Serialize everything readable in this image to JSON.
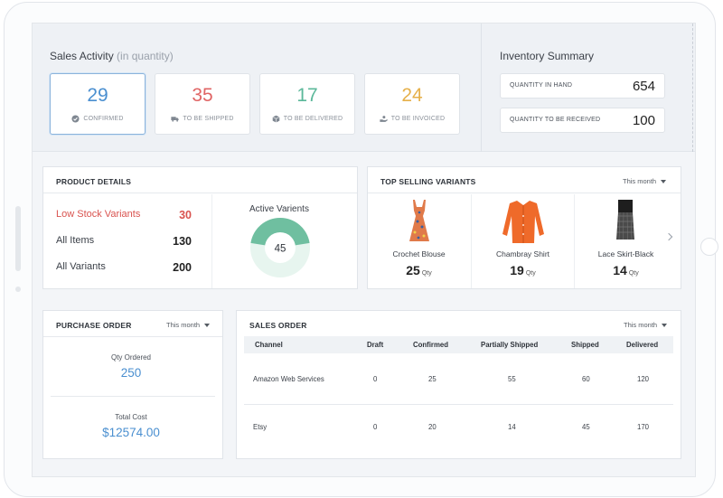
{
  "sales_activity": {
    "title": "Sales Activity",
    "subtitle": "(in quantity)",
    "stats": [
      {
        "value": "29",
        "label": "CONFIRMED",
        "color": "#4a8fd0",
        "icon": "check-circle-icon"
      },
      {
        "value": "35",
        "label": "TO BE SHIPPED",
        "color": "#e06464",
        "icon": "truck-icon"
      },
      {
        "value": "17",
        "label": "TO BE DELIVERED",
        "color": "#5bb89a",
        "icon": "box-icon"
      },
      {
        "value": "24",
        "label": "TO BE INVOICED",
        "color": "#e6b04a",
        "icon": "hand-coin-icon"
      }
    ]
  },
  "inventory_summary": {
    "title": "Inventory Summary",
    "rows": [
      {
        "label": "QUANTITY IN HAND",
        "value": "654"
      },
      {
        "label": "QUANTITY TO BE RECEIVED",
        "value": "100"
      }
    ]
  },
  "product_details": {
    "title": "PRODUCT DETAILS",
    "rows": [
      {
        "label": "Low Stock Variants",
        "value": "30"
      },
      {
        "label": "All Items",
        "value": "130"
      },
      {
        "label": "All Variants",
        "value": "200"
      }
    ],
    "active_variants": {
      "title": "Active Varients",
      "value": "45",
      "fraction": 0.45,
      "color": "#6fbfa0",
      "track_color": "#e7f5ef"
    }
  },
  "top_selling": {
    "title": "TOP SELLING VARIANTS",
    "period": "This month",
    "variants": [
      {
        "name": "Crochet Blouse",
        "qty": "25",
        "unit": "Qty",
        "icon": "floral-dress-icon"
      },
      {
        "name": "Chambray Shirt",
        "qty": "19",
        "unit": "Qty",
        "icon": "orange-cardigan-icon"
      },
      {
        "name": "Lace Skirt-Black",
        "qty": "14",
        "unit": "Qty",
        "icon": "lace-skirt-icon"
      }
    ]
  },
  "purchase_order": {
    "title": "PURCHASE ORDER",
    "period": "This month",
    "qty_label": "Qty Ordered",
    "qty_value": "250",
    "cost_label": "Total Cost",
    "cost_value": "$12574.00"
  },
  "sales_order": {
    "title": "SALES ORDER",
    "period": "This month",
    "columns": [
      "Channel",
      "Draft",
      "Confirmed",
      "Partially Shipped",
      "Shipped",
      "Delivered"
    ],
    "rows": [
      [
        "Amazon Web Services",
        "0",
        "25",
        "55",
        "60",
        "120"
      ],
      [
        "Etsy",
        "0",
        "20",
        "14",
        "45",
        "170"
      ]
    ]
  }
}
